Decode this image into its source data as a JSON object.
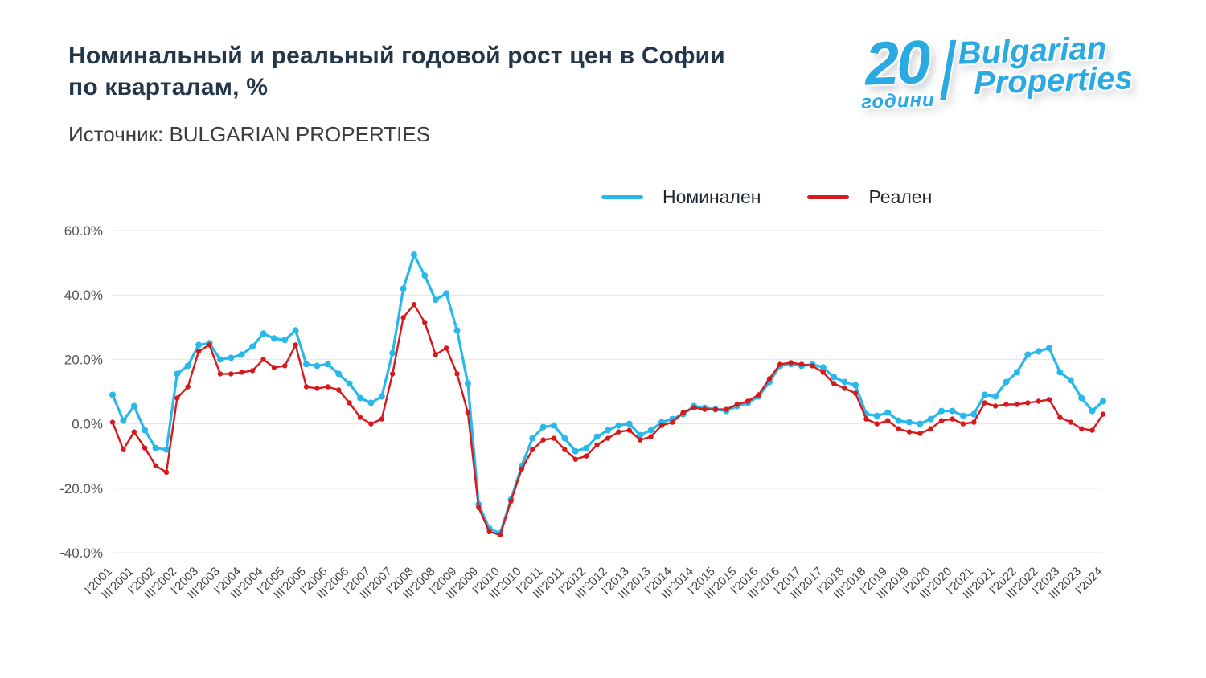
{
  "header": {
    "title_line1": "Номинальный и реальный годовой рост цен в Софии",
    "title_line2": "по кварталам, %",
    "subtitle": "Источник: BULGARIAN PROPERTIES"
  },
  "logo": {
    "number": "20",
    "years_label": "години",
    "brand_line1": "Bulgarian",
    "brand_line2": "Properties",
    "color": "#29ABE2"
  },
  "legend": [
    {
      "label": "Номинален",
      "color": "#29B8EA"
    },
    {
      "label": "Реален",
      "color": "#D7191C"
    }
  ],
  "chart_data": {
    "type": "line",
    "title": "Номинальный и реальный годовой рост цен в Софии по кварталам, %",
    "source": "BULGARIAN PROPERTIES",
    "xlabel": "",
    "ylabel": "",
    "ylim": [
      -40,
      60
    ],
    "y_ticks": [
      60,
      40,
      20,
      0,
      -20,
      -40
    ],
    "y_tick_labels": [
      "60.0%",
      "40.0%",
      "20.0%",
      "0.0%",
      "-20.0%",
      "-40.0%"
    ],
    "grid": "horizontal",
    "legend_position": "top",
    "x_tick_step": 2,
    "x": [
      "I'2001",
      "II'2001",
      "III'2001",
      "IV'2001",
      "I'2002",
      "II'2002",
      "III'2002",
      "IV'2002",
      "I'2003",
      "II'2003",
      "III'2003",
      "IV'2003",
      "I'2004",
      "II'2004",
      "III'2004",
      "IV'2004",
      "I'2005",
      "II'2005",
      "III'2005",
      "IV'2005",
      "I'2006",
      "II'2006",
      "III'2006",
      "IV'2006",
      "I'2007",
      "II'2007",
      "III'2007",
      "IV'2007",
      "I'2008",
      "II'2008",
      "III'2008",
      "IV'2008",
      "I'2009",
      "II'2009",
      "III'2009",
      "IV'2009",
      "I'2010",
      "II'2010",
      "III'2010",
      "IV'2010",
      "I'2011",
      "II'2011",
      "III'2011",
      "IV'2011",
      "I'2012",
      "II'2012",
      "III'2012",
      "IV'2012",
      "I'2013",
      "II'2013",
      "III'2013",
      "IV'2013",
      "I'2014",
      "II'2014",
      "III'2014",
      "IV'2014",
      "I'2015",
      "II'2015",
      "III'2015",
      "IV'2015",
      "I'2016",
      "II'2016",
      "III'2016",
      "IV'2016",
      "I'2017",
      "II'2017",
      "III'2017",
      "IV'2017",
      "I'2018",
      "II'2018",
      "III'2018",
      "IV'2018",
      "I'2019",
      "II'2019",
      "III'2019",
      "IV'2019",
      "I'2020",
      "II'2020",
      "III'2020",
      "IV'2020",
      "I'2021",
      "II'2021",
      "III'2021",
      "IV'2021",
      "I'2022",
      "II'2022",
      "III'2022",
      "IV'2022",
      "I'2023",
      "II'2023",
      "III'2023",
      "IV'2023",
      "I'2024"
    ],
    "series": [
      {
        "name": "Номинален",
        "color": "#29B8EA",
        "values": [
          9.0,
          1.0,
          5.5,
          -2.0,
          -7.5,
          -8.0,
          15.5,
          18.0,
          24.5,
          25.0,
          20.0,
          20.5,
          21.5,
          24.0,
          28.0,
          26.5,
          26.0,
          29.0,
          18.5,
          18.0,
          18.5,
          15.5,
          12.5,
          8.0,
          6.5,
          8.5,
          22.0,
          42.0,
          52.5,
          46.0,
          38.5,
          40.5,
          29.0,
          12.5,
          -25.0,
          -32.5,
          -34.0,
          -23.5,
          -13.0,
          -4.5,
          -1.0,
          -0.5,
          -4.5,
          -8.5,
          -7.5,
          -4.0,
          -2.0,
          -0.5,
          0.0,
          -3.5,
          -2.0,
          0.5,
          1.5,
          3.0,
          5.5,
          5.0,
          4.5,
          4.0,
          5.5,
          6.5,
          8.5,
          13.0,
          18.0,
          18.5,
          18.0,
          18.5,
          17.5,
          14.5,
          13.0,
          12.0,
          3.0,
          2.5,
          3.5,
          1.0,
          0.5,
          0.0,
          1.5,
          4.0,
          4.0,
          2.5,
          3.0,
          9.0,
          8.5,
          13.0,
          16.0,
          21.5,
          22.5,
          23.5,
          16.0,
          13.5,
          8.0,
          4.0,
          7.0
        ]
      },
      {
        "name": "Реален",
        "color": "#D7191C",
        "values": [
          0.5,
          -8.0,
          -2.5,
          -7.5,
          -13.0,
          -15.0,
          8.0,
          11.5,
          22.5,
          24.5,
          15.5,
          15.5,
          16.0,
          16.5,
          20.0,
          17.5,
          18.0,
          24.5,
          11.5,
          11.0,
          11.5,
          10.5,
          6.5,
          2.0,
          0.0,
          1.5,
          15.5,
          33.0,
          37.0,
          31.5,
          21.5,
          23.5,
          15.5,
          3.5,
          -26.0,
          -33.5,
          -34.5,
          -24.0,
          -14.0,
          -8.0,
          -5.0,
          -4.5,
          -8.0,
          -11.0,
          -10.0,
          -6.5,
          -4.5,
          -2.5,
          -2.0,
          -5.0,
          -4.0,
          -0.5,
          0.5,
          3.5,
          5.0,
          4.5,
          4.5,
          4.5,
          6.0,
          7.0,
          9.0,
          14.0,
          18.5,
          19.0,
          18.5,
          18.0,
          16.0,
          12.5,
          11.0,
          9.5,
          1.5,
          0.0,
          1.0,
          -1.5,
          -2.5,
          -3.0,
          -1.5,
          1.0,
          1.5,
          0.0,
          0.5,
          6.5,
          5.5,
          6.0,
          6.0,
          6.5,
          7.0,
          7.5,
          2.0,
          0.5,
          -1.5,
          -2.0,
          3.0
        ]
      }
    ]
  }
}
